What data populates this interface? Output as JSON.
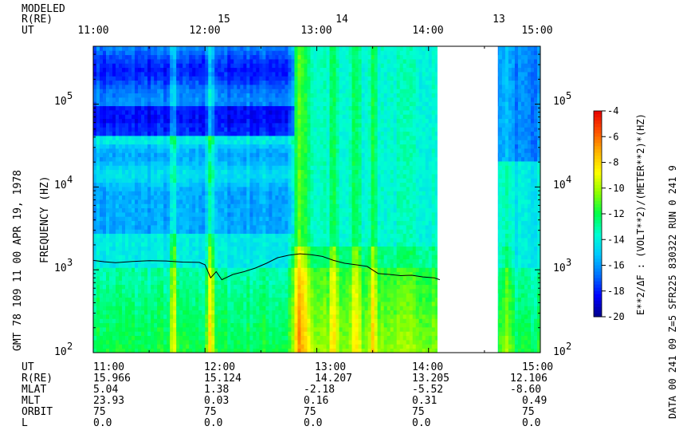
{
  "chart_data": {
    "type": "heatmap",
    "header": {
      "row_labels": [
        "MODELED",
        "R(RE)",
        "UT"
      ],
      "top_r_values": [
        "15",
        "14",
        "13"
      ],
      "top_ut_ticks": [
        "11:00",
        "12:00",
        "13:00",
        "14:00",
        "15:00"
      ]
    },
    "ylabel": "FREQUENCY (HZ)",
    "y_scale": "log",
    "ylim": [
      100,
      500000
    ],
    "y_ticks": [
      {
        "mantissa": "10",
        "exp": "2",
        "value": 100
      },
      {
        "mantissa": "10",
        "exp": "3",
        "value": 1000
      },
      {
        "mantissa": "10",
        "exp": "4",
        "value": 10000
      },
      {
        "mantissa": "10",
        "exp": "5",
        "value": 100000
      }
    ],
    "xlabel": "UT",
    "xlim_hours": [
      11.0,
      15.0
    ],
    "data_gap_hours": [
      14.08,
      14.62
    ],
    "left_caption": "GMT 78 109 11 00  APR 19, 1978",
    "colorbar": {
      "label": "E**2/ΔF : (VOLT**2)/(METER**2)*(HZ)",
      "ticks": [
        "-4",
        "-6",
        "-8",
        "-10",
        "-12",
        "-14",
        "-16",
        "-18",
        "-20"
      ],
      "range": [
        -20,
        -4
      ],
      "colors": [
        "#00008c",
        "#0000ff",
        "#0070ff",
        "#00c8ff",
        "#00ffd2",
        "#00ff46",
        "#8cff00",
        "#ffff00",
        "#ffb400",
        "#ff5000",
        "#e60000"
      ]
    },
    "right_caption": "DATA  00 241 09 Z=5 SFR225 830322 RUN  0  241 9",
    "trace_name": "electron plasma frequency (model)",
    "trace": {
      "ut": [
        11.0,
        11.1,
        11.2,
        11.35,
        11.5,
        11.65,
        11.8,
        11.95,
        12.0,
        12.05,
        12.1,
        12.15,
        12.25,
        12.35,
        12.45,
        12.55,
        12.65,
        12.75,
        12.85,
        12.95,
        13.05,
        13.15,
        13.25,
        13.35,
        13.45,
        13.55,
        13.65,
        13.75,
        13.85,
        13.95,
        14.05,
        14.1
      ],
      "freq_hz": [
        1300,
        1250,
        1220,
        1260,
        1290,
        1280,
        1240,
        1230,
        1150,
        800,
        950,
        760,
        880,
        950,
        1050,
        1200,
        1400,
        1500,
        1560,
        1520,
        1450,
        1300,
        1200,
        1150,
        1100,
        900,
        880,
        850,
        860,
        820,
        800,
        760
      ]
    },
    "ephemeris": {
      "rows": [
        {
          "label": "UT",
          "values": [
            "11:00",
            "12:00",
            "13:00",
            "14:00",
            "15:00"
          ]
        },
        {
          "label": "R(RE)",
          "values": [
            "15.966",
            "15.124",
            "14.207",
            "13.205",
            "12.106"
          ]
        },
        {
          "label": "MLAT",
          "values": [
            "5.04",
            "1.38",
            "-2.18",
            "-5.52",
            "-8.60"
          ]
        },
        {
          "label": "MLT",
          "values": [
            "23.93",
            "0.03",
            "0.16",
            "0.31",
            "0.49"
          ]
        },
        {
          "label": "ORBIT",
          "values": [
            "75",
            "75",
            "75",
            "75",
            "75"
          ]
        },
        {
          "label": "L",
          "values": [
            "0.0",
            "0.0",
            "0.0",
            "0.0",
            "0.0"
          ]
        }
      ]
    }
  }
}
